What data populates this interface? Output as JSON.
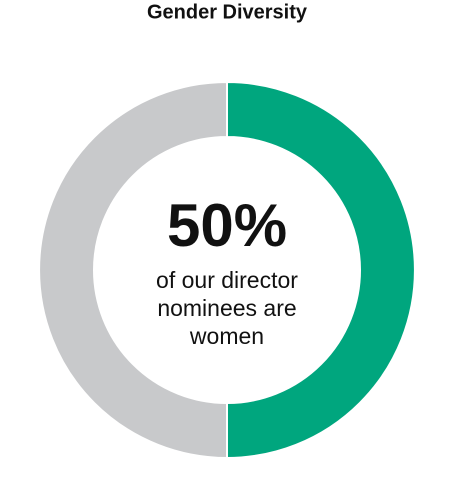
{
  "chart_data": {
    "type": "donut",
    "title": "Gender Diversity",
    "values": [
      50,
      50
    ],
    "value_labels": [
      "50%",
      null
    ],
    "colors": [
      "#00a67e",
      "#c8c9cb"
    ],
    "annotation": [
      "of our director",
      "nominees are",
      "women"
    ]
  }
}
